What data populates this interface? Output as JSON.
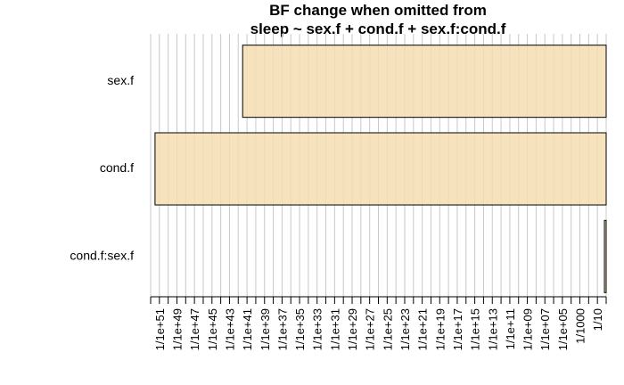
{
  "chart_data": {
    "type": "bar",
    "orientation": "horizontal",
    "title": "BF change when omitted from",
    "subtitle": "sleep ~ sex.f + cond.f + sex.f:cond.f",
    "xlabel": "",
    "ylabel": "",
    "x_scale": "log10",
    "x_tick_labels": [
      "1/1e+51",
      "1/1e+49",
      "1/1e+47",
      "1/1e+45",
      "1/1e+43",
      "1/1e+41",
      "1/1e+39",
      "1/1e+37",
      "1/1e+35",
      "1/1e+33",
      "1/1e+31",
      "1/1e+29",
      "1/1e+27",
      "1/1e+25",
      "1/1e+23",
      "1/1e+21",
      "1/1e+19",
      "1/1e+17",
      "1/1e+15",
      "1/1e+13",
      "1/1e+11",
      "1/1e+09",
      "1/1e+07",
      "1/1e+05",
      "1/1000",
      "1/10"
    ],
    "categories": [
      "sex.f",
      "cond.f",
      "cond.f:sex.f"
    ],
    "bar_values_log10": [
      -41.5,
      -51.5,
      -0.2
    ],
    "bar_color": "#F5DEB3",
    "grid": true
  }
}
